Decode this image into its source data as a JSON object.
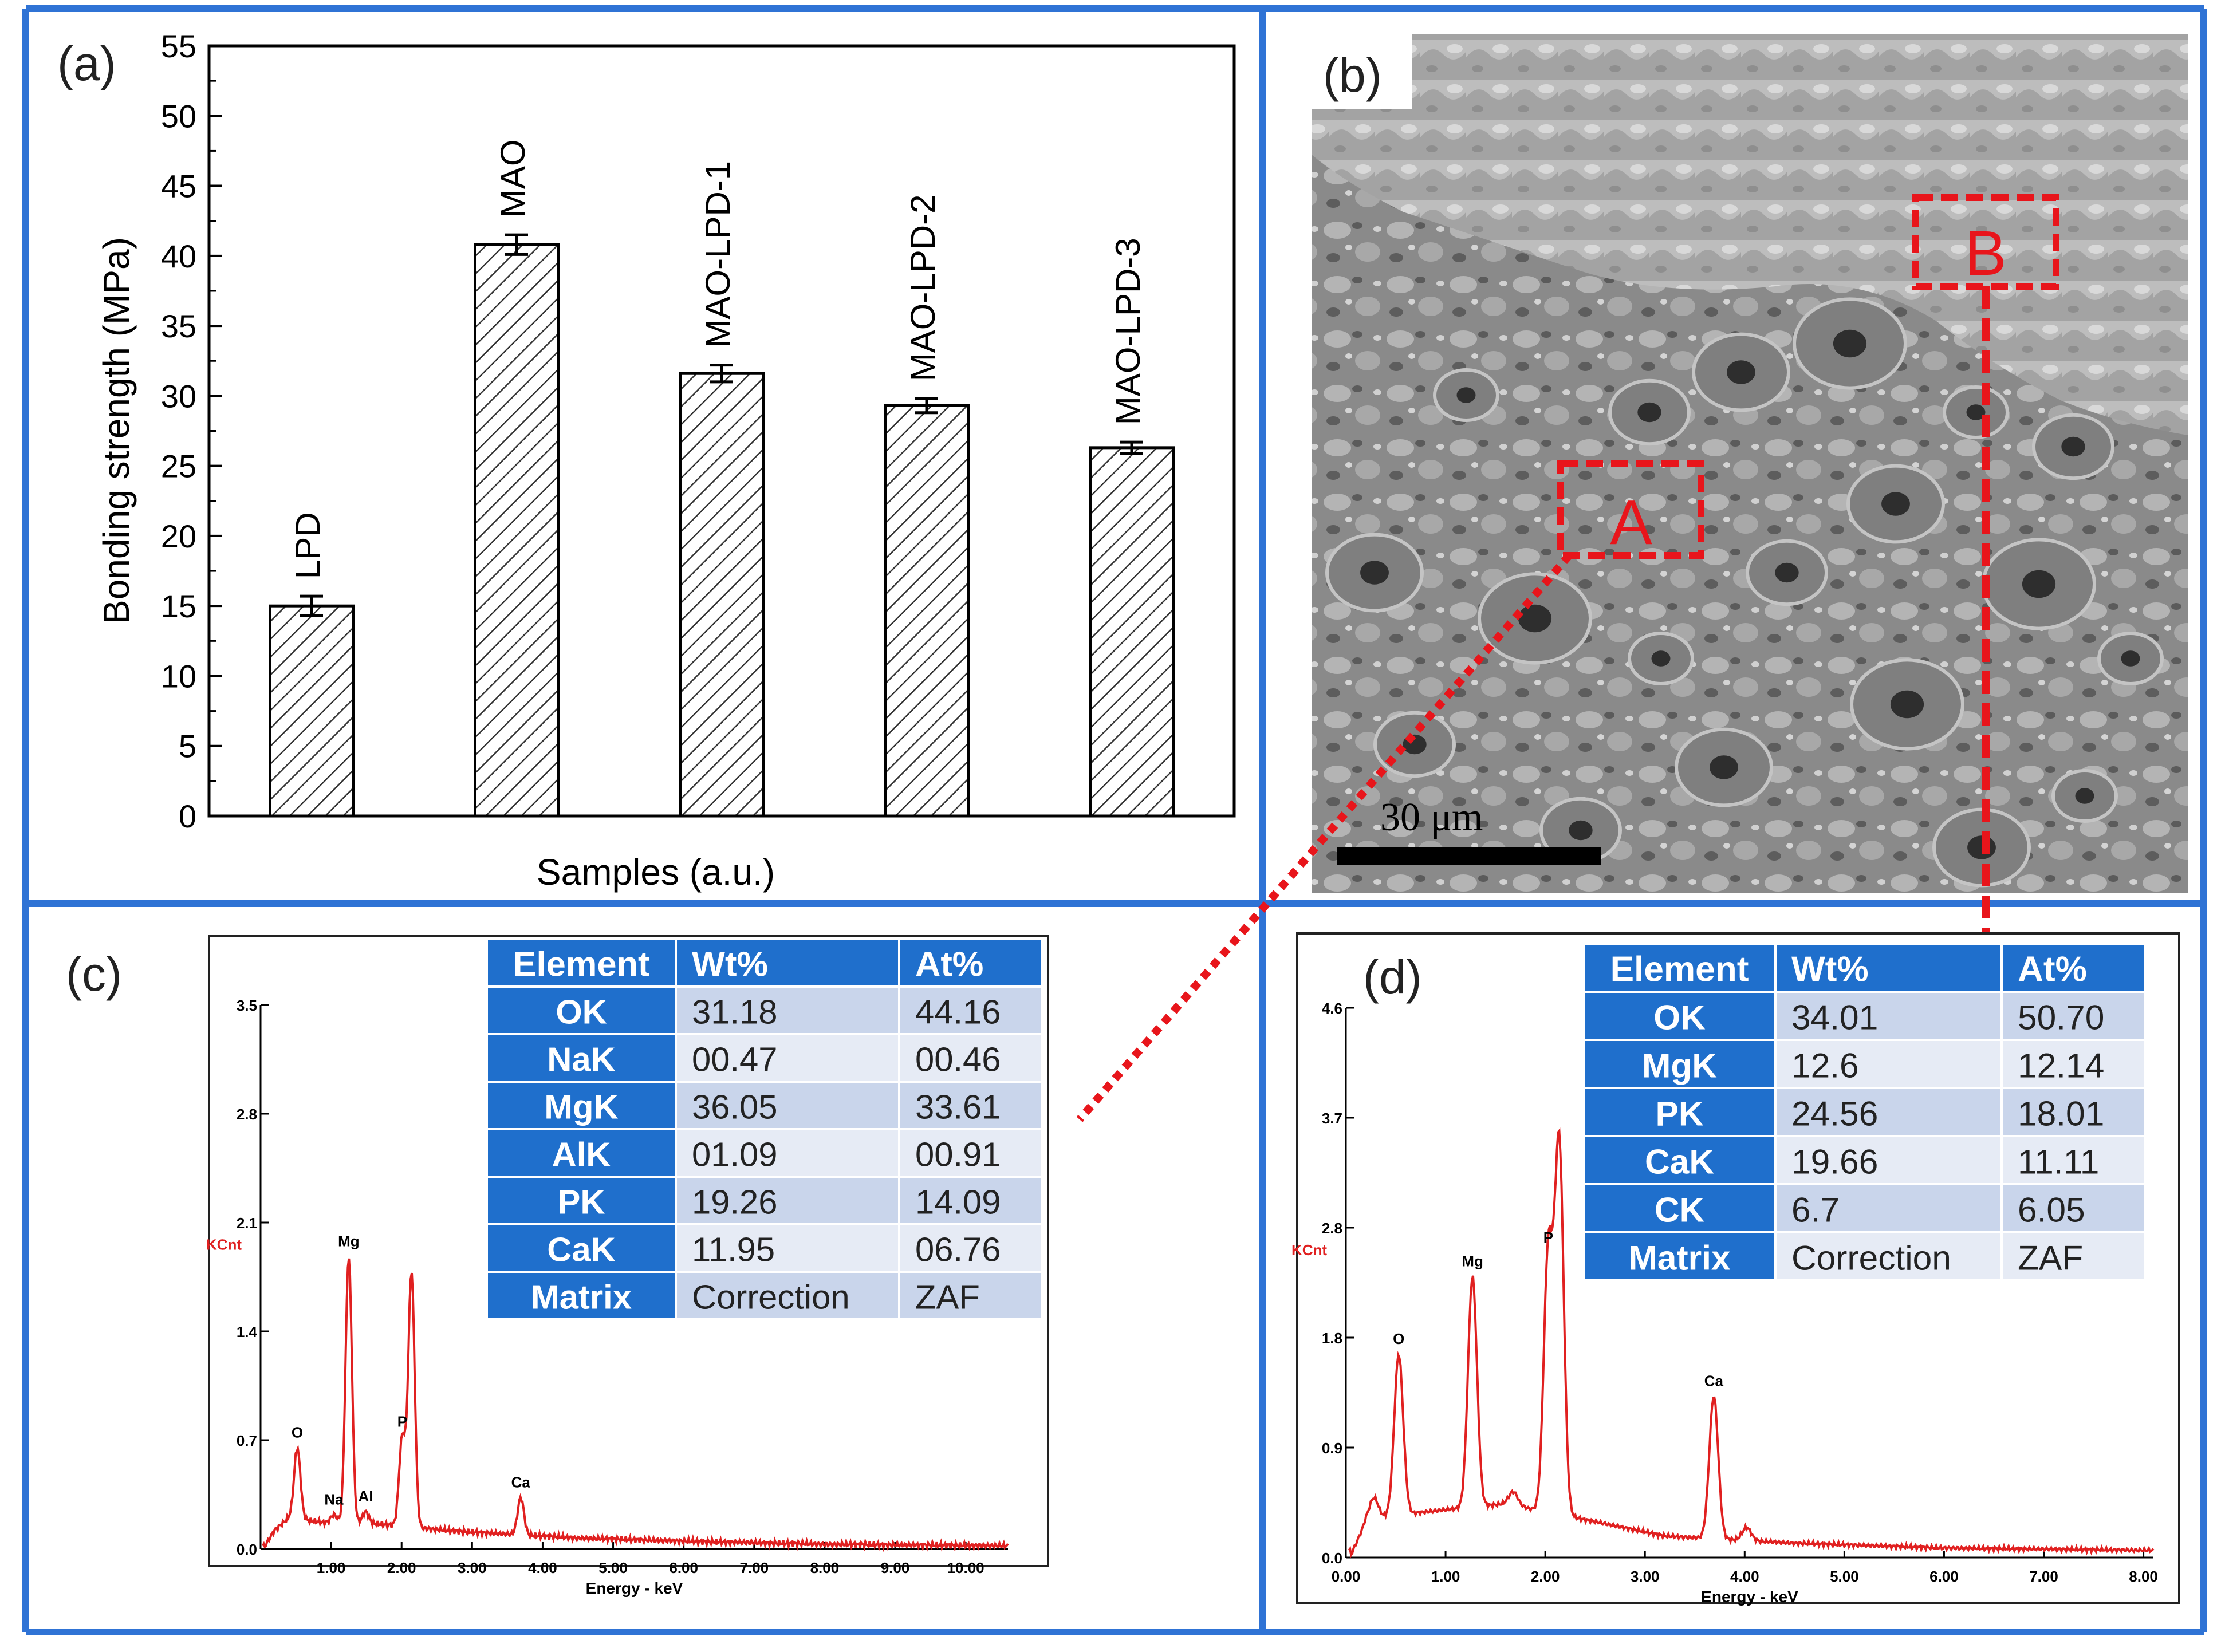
{
  "colors": {
    "frame_blue": "#2F73D5",
    "table_header": "#1F6FCC",
    "table_row_alt": "#C9D5EB",
    "table_row": "#E6EBF5",
    "spectrum_red": "#E02020",
    "marker_red": "#E8151B"
  },
  "panels": {
    "a": {
      "label": "(a)",
      "chart_data": {
        "type": "bar",
        "categories": [
          "LPD",
          "MAO",
          "MAO-LPD-1",
          "MAO-LPD-2",
          "MAO-LPD-3"
        ],
        "values": [
          15.0,
          40.8,
          31.6,
          29.3,
          26.3
        ],
        "errors": [
          0.7,
          0.7,
          0.6,
          0.5,
          0.4
        ],
        "xlabel": "Samples (a.u.)",
        "ylabel": "Bonding strength (MPa)",
        "ylim": [
          0,
          55
        ],
        "yticks": [
          0,
          5,
          10,
          15,
          20,
          25,
          30,
          35,
          40,
          45,
          50,
          55
        ],
        "bar_pattern": "hatched"
      }
    },
    "b": {
      "label": "(b)",
      "image_icon": "sem-micrograph",
      "scale_bar": "30 μm",
      "region_a": "A",
      "region_b": "B"
    },
    "c": {
      "label": "(c)",
      "table": {
        "headers": [
          "Element",
          "Wt%",
          "At%"
        ],
        "rows": [
          [
            "OK",
            "31.18",
            "44.16"
          ],
          [
            "NaK",
            "00.47",
            "00.46"
          ],
          [
            "MgK",
            "36.05",
            "33.61"
          ],
          [
            "AlK",
            "01.09",
            "00.91"
          ],
          [
            "PK",
            "19.26",
            "14.09"
          ],
          [
            "CaK",
            "11.95",
            "06.76"
          ],
          [
            "Matrix",
            "Correction",
            "ZAF"
          ]
        ]
      },
      "chart_data": {
        "type": "line",
        "xlabel": "Energy - keV",
        "ylabel": "KCnt",
        "xlim": [
          0,
          10.6
        ],
        "ylim": [
          0,
          3.5
        ],
        "xticks": [
          "1.00",
          "2.00",
          "3.00",
          "4.00",
          "5.00",
          "6.00",
          "7.00",
          "8.00",
          "9.00",
          "10.00"
        ],
        "yticks": [
          "0.0",
          "0.7",
          "1.4",
          "2.1",
          "2.8",
          "3.5"
        ],
        "peaks": [
          {
            "label": "O",
            "x": 0.52,
            "y": 0.65
          },
          {
            "label": "Na",
            "x": 1.04,
            "y": 0.22
          },
          {
            "label": "Mg",
            "x": 1.25,
            "y": 1.88
          },
          {
            "label": "Al",
            "x": 1.49,
            "y": 0.24
          },
          {
            "label": "P",
            "x": 2.01,
            "y": 0.72
          },
          {
            "label": "",
            "x": 2.14,
            "y": 1.78
          },
          {
            "label": "Ca",
            "x": 3.69,
            "y": 0.33
          }
        ],
        "baseline": [
          [
            0.05,
            0.01
          ],
          [
            0.2,
            0.12
          ],
          [
            0.4,
            0.2
          ],
          [
            0.9,
            0.17
          ],
          [
            1.7,
            0.16
          ],
          [
            2.6,
            0.12
          ],
          [
            3.3,
            0.1
          ],
          [
            4.5,
            0.07
          ],
          [
            6.0,
            0.05
          ],
          [
            8.0,
            0.03
          ],
          [
            10.6,
            0.02
          ]
        ]
      }
    },
    "d": {
      "label": "(d)",
      "table": {
        "headers": [
          "Element",
          "Wt%",
          "At%"
        ],
        "rows": [
          [
            "OK",
            "34.01",
            "50.70"
          ],
          [
            "MgK",
            "12.6",
            "12.14"
          ],
          [
            "PK",
            "24.56",
            "18.01"
          ],
          [
            "CaK",
            "19.66",
            "11.11"
          ],
          [
            "CK",
            "6.7",
            "6.05"
          ],
          [
            "Matrix",
            "Correction",
            "ZAF"
          ]
        ]
      },
      "chart_data": {
        "type": "line",
        "xlabel": "Energy - keV",
        "ylabel": "KCnt",
        "xlim": [
          0,
          8.1
        ],
        "ylim": [
          0,
          4.6
        ],
        "xticks": [
          "0.00",
          "1.00",
          "2.00",
          "3.00",
          "4.00",
          "5.00",
          "6.00",
          "7.00",
          "8.00"
        ],
        "yticks": [
          "0.0",
          "0.9",
          "1.8",
          "2.8",
          "3.7",
          "4.6"
        ],
        "peaks": [
          {
            "label": "",
            "x": 0.28,
            "y": 0.5
          },
          {
            "label": "O",
            "x": 0.53,
            "y": 1.7
          },
          {
            "label": "Mg",
            "x": 1.27,
            "y": 2.35
          },
          {
            "label": "",
            "x": 1.68,
            "y": 0.55
          },
          {
            "label": "P",
            "x": 2.03,
            "y": 2.55
          },
          {
            "label": "",
            "x": 2.14,
            "y": 3.45
          },
          {
            "label": "Ca",
            "x": 3.69,
            "y": 1.35
          },
          {
            "label": "",
            "x": 4.02,
            "y": 0.25
          }
        ],
        "baseline": [
          [
            0.05,
            0.02
          ],
          [
            0.2,
            0.3
          ],
          [
            0.45,
            0.35
          ],
          [
            1.0,
            0.4
          ],
          [
            1.6,
            0.45
          ],
          [
            2.5,
            0.3
          ],
          [
            3.2,
            0.18
          ],
          [
            4.5,
            0.12
          ],
          [
            6.0,
            0.08
          ],
          [
            8.1,
            0.06
          ]
        ]
      }
    }
  }
}
